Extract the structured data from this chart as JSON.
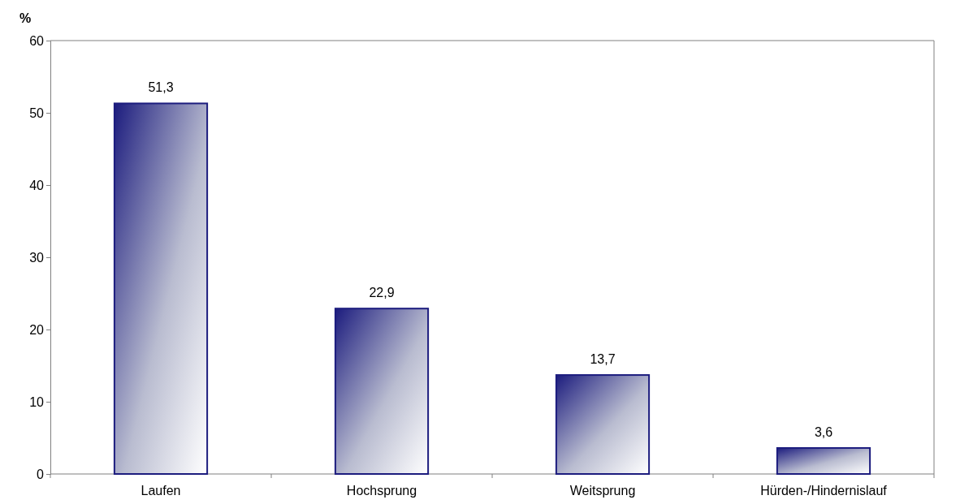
{
  "chart_data": {
    "type": "bar",
    "ylabel": "%",
    "categories": [
      "Laufen",
      "Hochsprung",
      "Weitsprung",
      "Hürden-/Hindernislauf"
    ],
    "values": [
      51.3,
      22.9,
      13.7,
      3.6
    ],
    "value_labels": [
      "51,3",
      "22,9",
      "13,7",
      "3,6"
    ],
    "color": "#1c1c7e",
    "ylim": [
      0,
      60
    ],
    "yticks": [
      0,
      10,
      20,
      30,
      40,
      50,
      60
    ]
  }
}
